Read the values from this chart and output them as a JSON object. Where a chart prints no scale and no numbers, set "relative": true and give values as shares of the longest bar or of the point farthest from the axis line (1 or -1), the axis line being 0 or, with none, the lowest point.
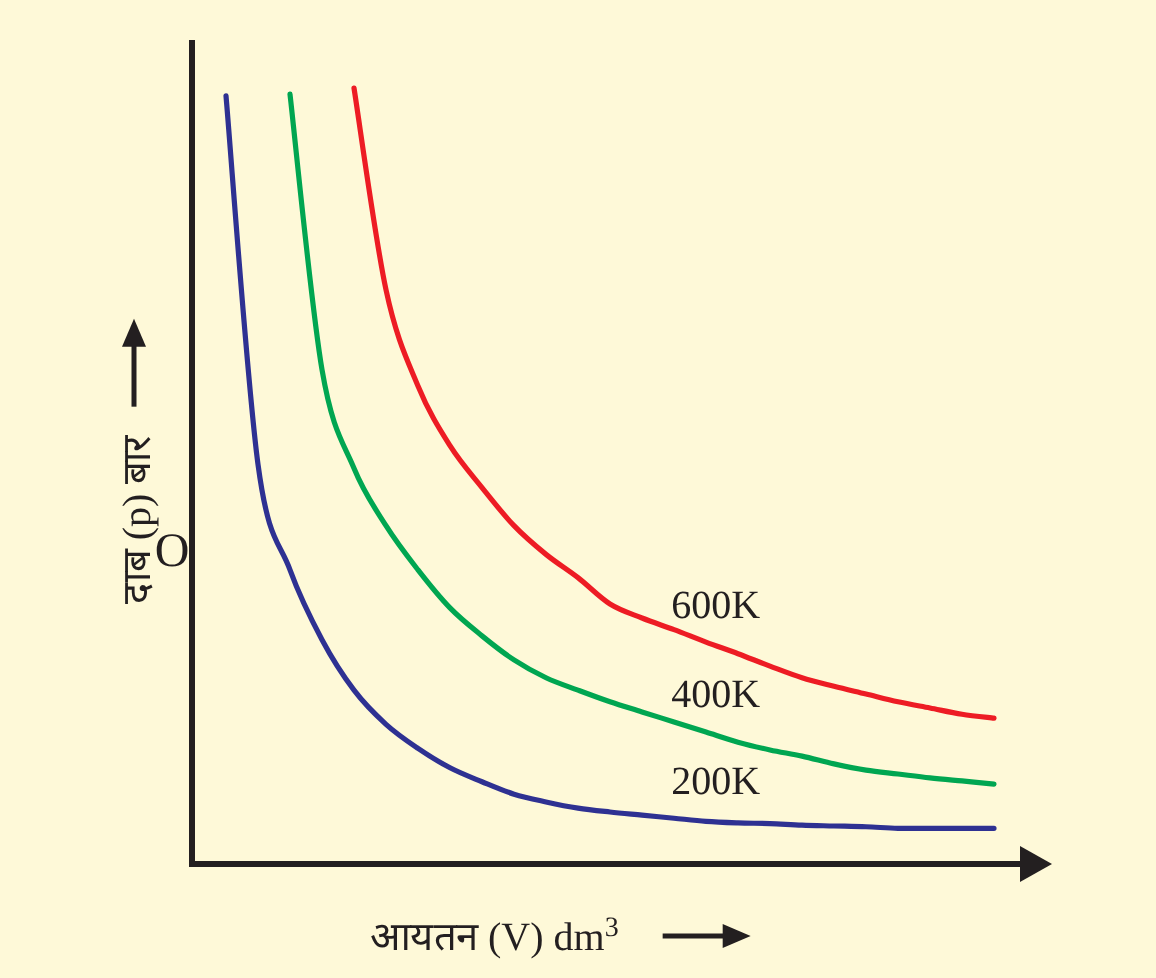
{
  "chart_data": {
    "type": "line",
    "relative": true,
    "xlabel": "आयतन (V) dm$^{3}$",
    "ylabel": "दाब (p) बार",
    "annotations": [
      "O"
    ],
    "categories": [
      null,
      null,
      null,
      null,
      null,
      null,
      null,
      null,
      null,
      null,
      null,
      null,
      null,
      null,
      null,
      null,
      null,
      null,
      null,
      null,
      null,
      null,
      null,
      null,
      null
    ],
    "series": [
      {
        "name": "200K",
        "color": "#2e3192",
        "values": [
          0.99,
          0.515,
          0.379,
          0.289,
          0.224,
          0.18,
          0.149,
          0.124,
          0.106,
          0.09,
          0.08,
          0.072,
          0.067,
          0.063,
          0.059,
          0.055,
          0.053,
          0.052,
          0.05,
          0.049,
          0.048,
          0.046,
          0.046,
          0.046,
          0.046
        ]
      },
      {
        "name": "400K",
        "color": "#00a651",
        "values": [
          null,
          null,
          0.992,
          0.637,
          0.51,
          0.436,
          0.379,
          0.33,
          0.294,
          0.263,
          0.24,
          0.224,
          0.209,
          0.196,
          0.183,
          0.17,
          0.157,
          0.147,
          0.139,
          0.129,
          0.121,
          0.116,
          0.111,
          0.107,
          0.103
        ]
      },
      {
        "name": "600K",
        "color": "#ed1c24",
        "values": [
          null,
          null,
          null,
          null,
          1,
          0.74,
          0.616,
          0.539,
          0.485,
          0.436,
          0.399,
          0.369,
          0.335,
          0.317,
          0.302,
          0.286,
          0.271,
          0.255,
          0.24,
          0.229,
          0.219,
          0.209,
          0.201,
          0.193,
          0.188
        ]
      }
    ]
  }
}
